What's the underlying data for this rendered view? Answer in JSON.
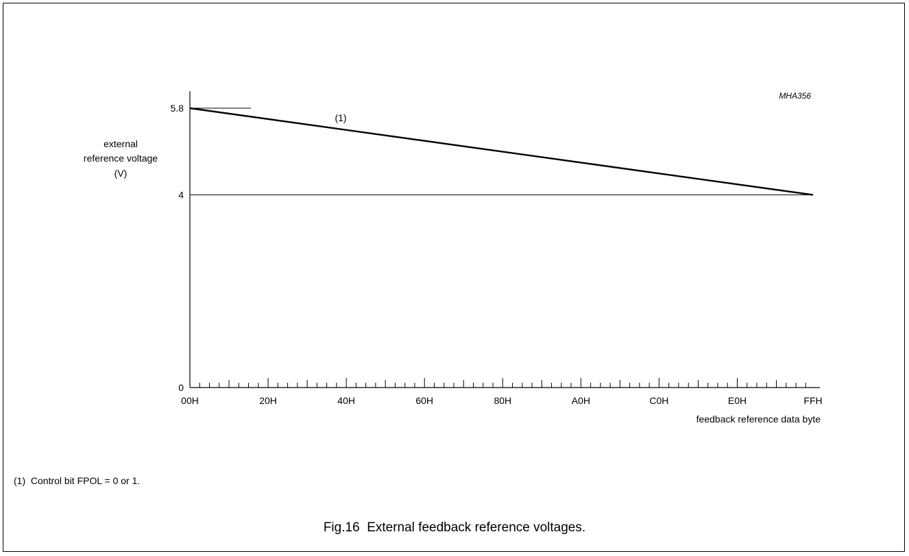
{
  "chart_data": {
    "type": "line",
    "code": "MHA356",
    "ylabel_lines": [
      "external",
      "reference voltage",
      "(V)"
    ],
    "xlabel": "feedback reference data byte",
    "y_ticks": [
      "0",
      "4",
      "5.8"
    ],
    "x_ticks": [
      "00H",
      "20H",
      "40H",
      "60H",
      "80H",
      "A0H",
      "C0H",
      "E0H",
      "FFH"
    ],
    "x": [
      0,
      255
    ],
    "y": [
      5.8,
      4
    ],
    "xlim": [
      0,
      255
    ],
    "ylim": [
      0,
      5.8
    ],
    "series": [
      {
        "name": "(1)",
        "x": [
          0,
          255
        ],
        "y": [
          5.8,
          4
        ]
      }
    ],
    "reference_lines": [
      {
        "y": 4,
        "from_x": 0,
        "to_x": 255
      },
      {
        "y": 5.8,
        "from_x": 0,
        "to_x": 25
      }
    ],
    "grid": false,
    "legend": "none"
  },
  "footnote": "(1)  Control bit FPOL = 0 or 1.",
  "caption": "Fig.16  External feedback reference voltages."
}
